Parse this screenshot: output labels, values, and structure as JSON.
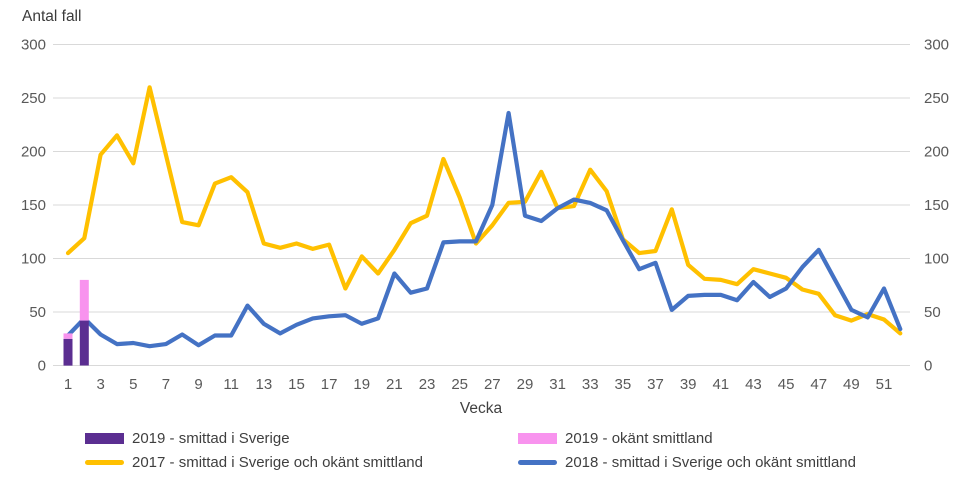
{
  "title": "Antal fall",
  "chart_data": {
    "type": "combo",
    "title": "Antal fall",
    "xlabel": "Vecka",
    "x_axis": {
      "label": "Vecka",
      "min_week": 1,
      "max_week": 52,
      "tick_labels": [
        1,
        3,
        5,
        7,
        9,
        11,
        13,
        15,
        17,
        19,
        21,
        23,
        25,
        27,
        29,
        31,
        33,
        35,
        37,
        39,
        41,
        43,
        45,
        47,
        49,
        51
      ]
    },
    "y_axis": {
      "label": "Antal fall",
      "min": 0,
      "max": 300,
      "step": 50,
      "ticks": [
        0,
        50,
        100,
        150,
        200,
        250,
        300
      ],
      "dual_axis": true,
      "grid": true
    },
    "series": [
      {
        "name": "2019 - smittad i Sverige",
        "type": "bar",
        "stacked": true,
        "color": "#5b2e91",
        "weeks": [
          1,
          2
        ],
        "values": [
          25,
          42
        ]
      },
      {
        "name": "2019 - okänt smittland",
        "type": "bar",
        "stacked": true,
        "color": "#f893ee",
        "weeks": [
          1,
          2
        ],
        "values": [
          5,
          38
        ]
      },
      {
        "name": "2017 - smittad i Sverige och okänt smittland",
        "type": "line",
        "color": "#ffc000",
        "values": [
          105,
          119,
          197,
          215,
          189,
          260,
          197,
          134,
          131,
          170,
          176,
          162,
          114,
          110,
          114,
          109,
          113,
          72,
          102,
          86,
          108,
          133,
          140,
          193,
          157,
          114,
          131,
          152,
          153,
          181,
          147,
          149,
          183,
          163,
          118,
          105,
          107,
          146,
          94,
          81,
          80,
          76,
          90,
          86,
          82,
          71,
          67,
          47,
          42,
          48,
          43,
          30
        ]
      },
      {
        "name": "2018 - smittad i Sverige och okänt smittland",
        "type": "line",
        "color": "#4472c4",
        "values": [
          28,
          44,
          29,
          20,
          21,
          18,
          20,
          29,
          19,
          28,
          28,
          56,
          39,
          30,
          38,
          44,
          46,
          47,
          39,
          44,
          86,
          68,
          72,
          115,
          116,
          116,
          150,
          236,
          140,
          135,
          147,
          155,
          152,
          145,
          117,
          90,
          96,
          52,
          65,
          66,
          66,
          61,
          78,
          64,
          72,
          92,
          108,
          80,
          52,
          45,
          72,
          34
        ]
      }
    ],
    "legend_position": "bottom"
  },
  "legend": {
    "items": [
      {
        "label": "2019 - smittad i Sverige",
        "swatch": "bar",
        "color": "#5b2e91"
      },
      {
        "label": "2019 - okänt smittland",
        "swatch": "bar",
        "color": "#f893ee"
      },
      {
        "label": "2017 - smittad i Sverige och okänt smittland",
        "swatch": "line",
        "color": "#ffc000"
      },
      {
        "label": "2018 - smittad i Sverige och okänt smittland",
        "swatch": "line",
        "color": "#4472c4"
      }
    ]
  },
  "colors": {
    "gridline": "#d9d9d9",
    "tick_text": "#595959",
    "axis_title_text": "#404040"
  }
}
